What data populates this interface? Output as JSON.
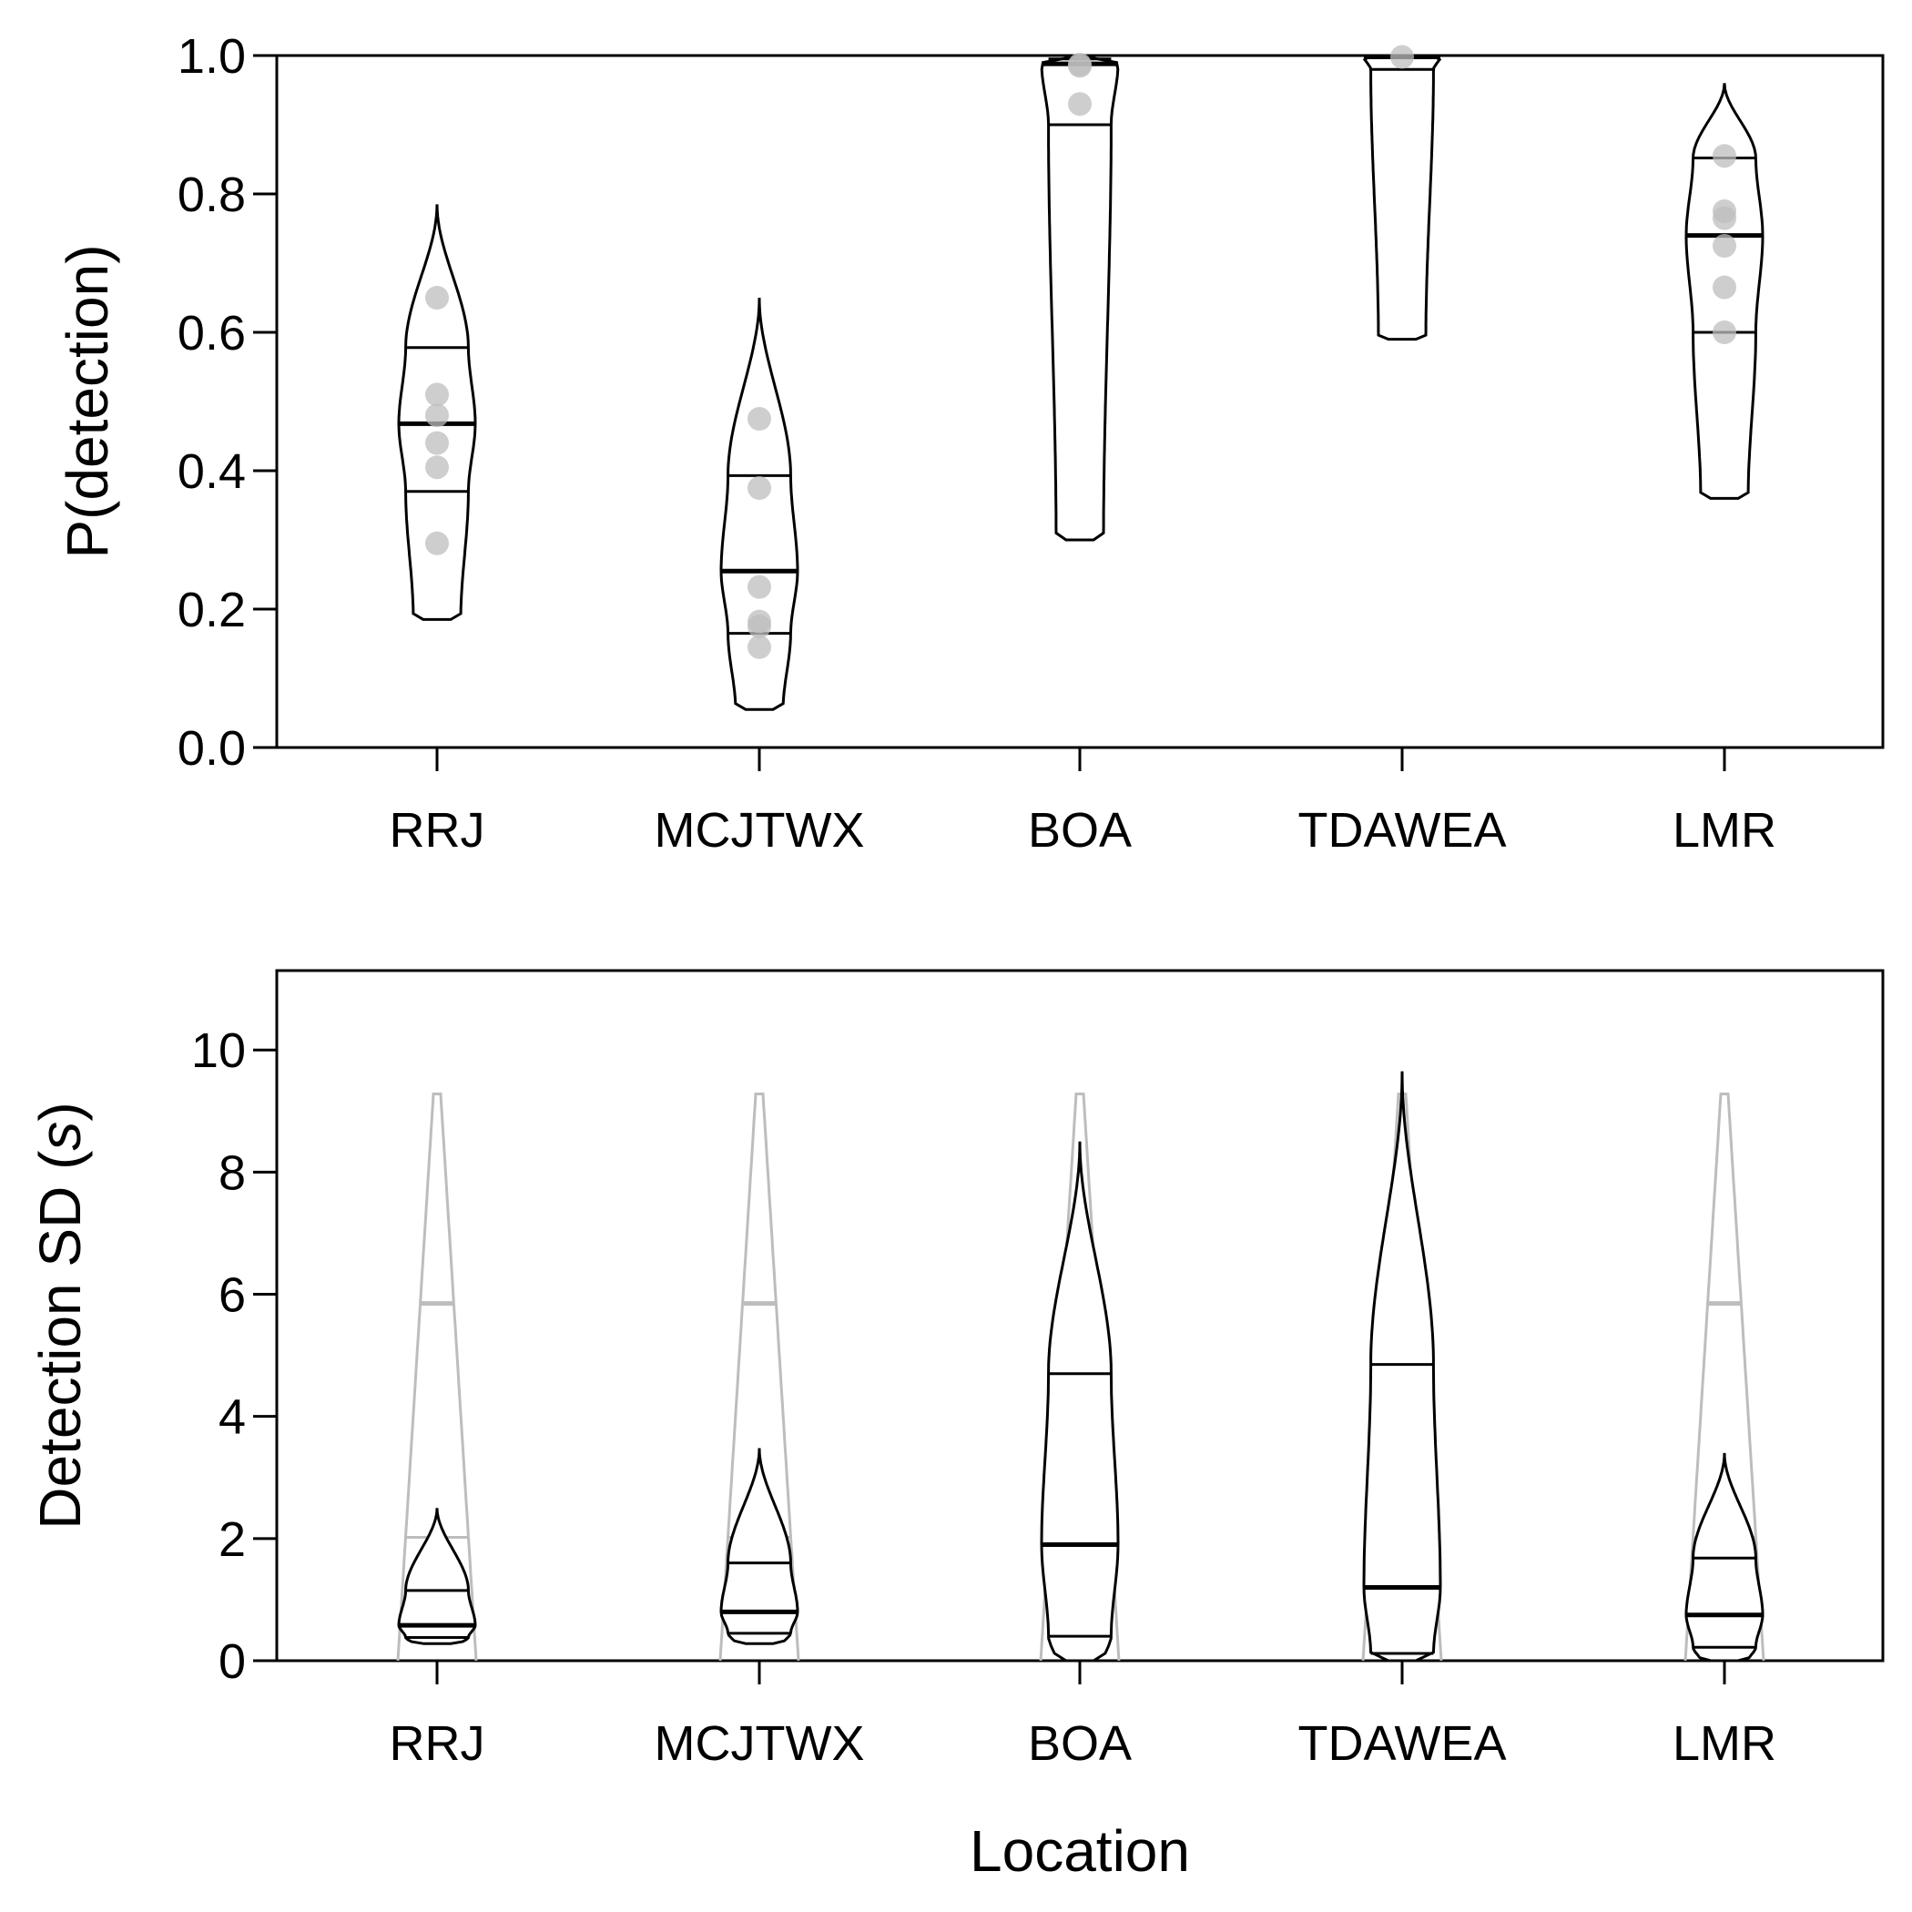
{
  "chart_data": [
    {
      "type": "violin",
      "ylabel": "P(detection)",
      "ylim": [
        0,
        1
      ],
      "yticks": [
        0.0,
        0.2,
        0.4,
        0.6,
        0.8,
        1.0
      ],
      "ytick_labels": [
        "0.0",
        "0.2",
        "0.4",
        "0.6",
        "0.8",
        "1.0"
      ],
      "categories": [
        "RRJ",
        "MCJTWX",
        "BOA",
        "TDAWEA",
        "LMR"
      ],
      "violins": [
        {
          "name": "RRJ",
          "min": 0.185,
          "max": 0.785,
          "q1": 0.37,
          "median": 0.468,
          "q3": 0.578,
          "max_halfwidth": 0.0296,
          "points": [
            0.65,
            0.51,
            0.48,
            0.44,
            0.405,
            0.295
          ]
        },
        {
          "name": "MCJTWX",
          "min": 0.055,
          "max": 0.65,
          "q1": 0.165,
          "median": 0.255,
          "q3": 0.393,
          "max_halfwidth": 0.0296,
          "points": [
            0.475,
            0.375,
            0.232,
            0.182,
            0.175,
            0.145
          ]
        },
        {
          "name": "BOA",
          "min": 0.3,
          "max": 1.0,
          "q1": 0.9,
          "median": 0.988,
          "q3": 0.995,
          "max_halfwidth": 0.0296,
          "points": [
            0.987,
            0.985,
            0.93
          ]
        },
        {
          "name": "TDAWEA",
          "min": 0.59,
          "max": 1.0,
          "q1": 0.98,
          "median": 0.998,
          "q3": 1.0,
          "max_halfwidth": 0.0296,
          "points": [
            0.998
          ]
        },
        {
          "name": "LMR",
          "min": 0.36,
          "max": 0.96,
          "q1": 0.6,
          "median": 0.74,
          "q3": 0.852,
          "max_halfwidth": 0.0296,
          "points": [
            0.855,
            0.775,
            0.765,
            0.725,
            0.665,
            0.6
          ]
        }
      ]
    },
    {
      "type": "violin",
      "xlabel": "Location",
      "ylabel_prefix": "Detection SD (",
      "ylabel_var": "s",
      "ylabel_suffix": ")",
      "ylim": [
        0,
        11.3
      ],
      "yticks": [
        0,
        2,
        4,
        6,
        8,
        10
      ],
      "ytick_labels": [
        "0",
        "2",
        "4",
        "6",
        "8",
        "10"
      ],
      "categories": [
        "RRJ",
        "MCJTWX",
        "BOA",
        "TDAWEA",
        "LMR"
      ],
      "prior": {
        "min": 0,
        "max": 9.28,
        "q1": 2.02,
        "median": 5.85,
        "q3": 5.85
      },
      "violins": [
        {
          "name": "RRJ",
          "min": 0.28,
          "max": 2.5,
          "q1": 0.38,
          "median": 0.58,
          "q3": 1.15
        },
        {
          "name": "MCJTWX",
          "min": 0.28,
          "max": 3.48,
          "q1": 0.45,
          "median": 0.8,
          "q3": 1.6
        },
        {
          "name": "BOA",
          "min": 0.0,
          "max": 8.5,
          "q1": 0.4,
          "median": 1.9,
          "q3": 4.7
        },
        {
          "name": "TDAWEA",
          "min": 0.0,
          "max": 9.65,
          "q1": 0.12,
          "median": 1.2,
          "q3": 4.85
        },
        {
          "name": "LMR",
          "min": 0.0,
          "max": 3.4,
          "q1": 0.22,
          "median": 0.75,
          "q3": 1.68
        }
      ]
    }
  ]
}
